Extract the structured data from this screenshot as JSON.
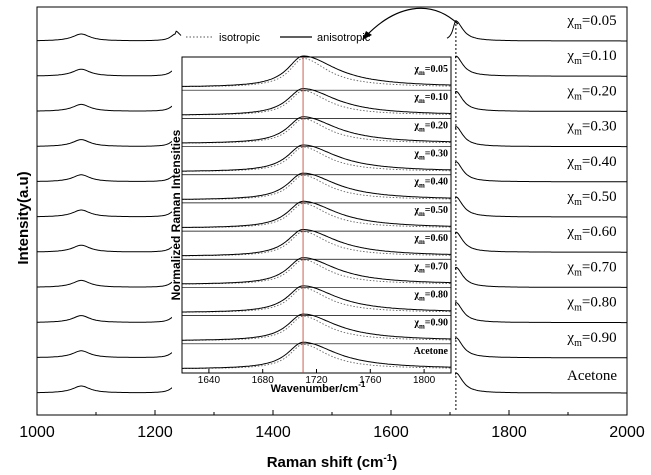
{
  "chart_data": [
    {
      "type": "line",
      "xlabel": "Raman shift (cm",
      "xlabel_sup": "-1",
      "xlabel_tail": ")",
      "ylabel": "Intensity(a.u)",
      "xlim": [
        1000,
        2000
      ],
      "xticks": [
        "1000",
        "1200",
        "1400",
        "1600",
        "1800",
        "2000"
      ],
      "xtick_values": [
        1000,
        1200,
        1400,
        1600,
        1800,
        2000
      ],
      "grid": false,
      "stacked_offset": true,
      "peaks_cm": [
        1075,
        1235,
        1710
      ],
      "series": [
        {
          "name_main": "χ",
          "name_sub": "m",
          "name_tail": "=0.05"
        },
        {
          "name_main": "χ",
          "name_sub": "m",
          "name_tail": "=0.10"
        },
        {
          "name_main": "χ",
          "name_sub": "m",
          "name_tail": "=0.20"
        },
        {
          "name_main": "χ",
          "name_sub": "m",
          "name_tail": "=0.30"
        },
        {
          "name_main": "χ",
          "name_sub": "m",
          "name_tail": "=0.40"
        },
        {
          "name_main": "χ",
          "name_sub": "m",
          "name_tail": "=0.50"
        },
        {
          "name_main": "χ",
          "name_sub": "m",
          "name_tail": "=0.60"
        },
        {
          "name_main": "χ",
          "name_sub": "m",
          "name_tail": "=0.70"
        },
        {
          "name_main": "χ",
          "name_sub": "m",
          "name_tail": "=0.80"
        },
        {
          "name_main": "χ",
          "name_sub": "m",
          "name_tail": "=0.90"
        },
        {
          "name_main": "Acetone",
          "name_sub": "",
          "name_tail": ""
        }
      ]
    },
    {
      "type": "line",
      "xlabel": "Wavenumber/cm",
      "xlabel_sup": "-1",
      "ylabel": "Normalized Raman Intensities",
      "xlim": [
        1620,
        1820
      ],
      "xticks": [
        "1640",
        "1680",
        "1720",
        "1760",
        "1800"
      ],
      "xtick_values": [
        1640,
        1680,
        1720,
        1760,
        1800
      ],
      "legend": {
        "position": "top",
        "entries": [
          "isotropic",
          "anisotropic"
        ]
      },
      "peak_cm": 1710,
      "series": [
        {
          "name_main": "χ",
          "name_sub": "m",
          "name_tail": "=0.05"
        },
        {
          "name_main": "χ",
          "name_sub": "m",
          "name_tail": "=0.10"
        },
        {
          "name_main": "χ",
          "name_sub": "m",
          "name_tail": "=0.20"
        },
        {
          "name_main": "χ",
          "name_sub": "m",
          "name_tail": "=0.30"
        },
        {
          "name_main": "χ",
          "name_sub": "m",
          "name_tail": "=0.40"
        },
        {
          "name_main": "χ",
          "name_sub": "m",
          "name_tail": "=0.50"
        },
        {
          "name_main": "χ",
          "name_sub": "m",
          "name_tail": "=0.60"
        },
        {
          "name_main": "χ",
          "name_sub": "m",
          "name_tail": "=0.70"
        },
        {
          "name_main": "χ",
          "name_sub": "m",
          "name_tail": "=0.80"
        },
        {
          "name_main": "χ",
          "name_sub": "m",
          "name_tail": "=0.90"
        },
        {
          "name_main": "Acetone",
          "name_sub": "",
          "name_tail": ""
        }
      ]
    }
  ]
}
